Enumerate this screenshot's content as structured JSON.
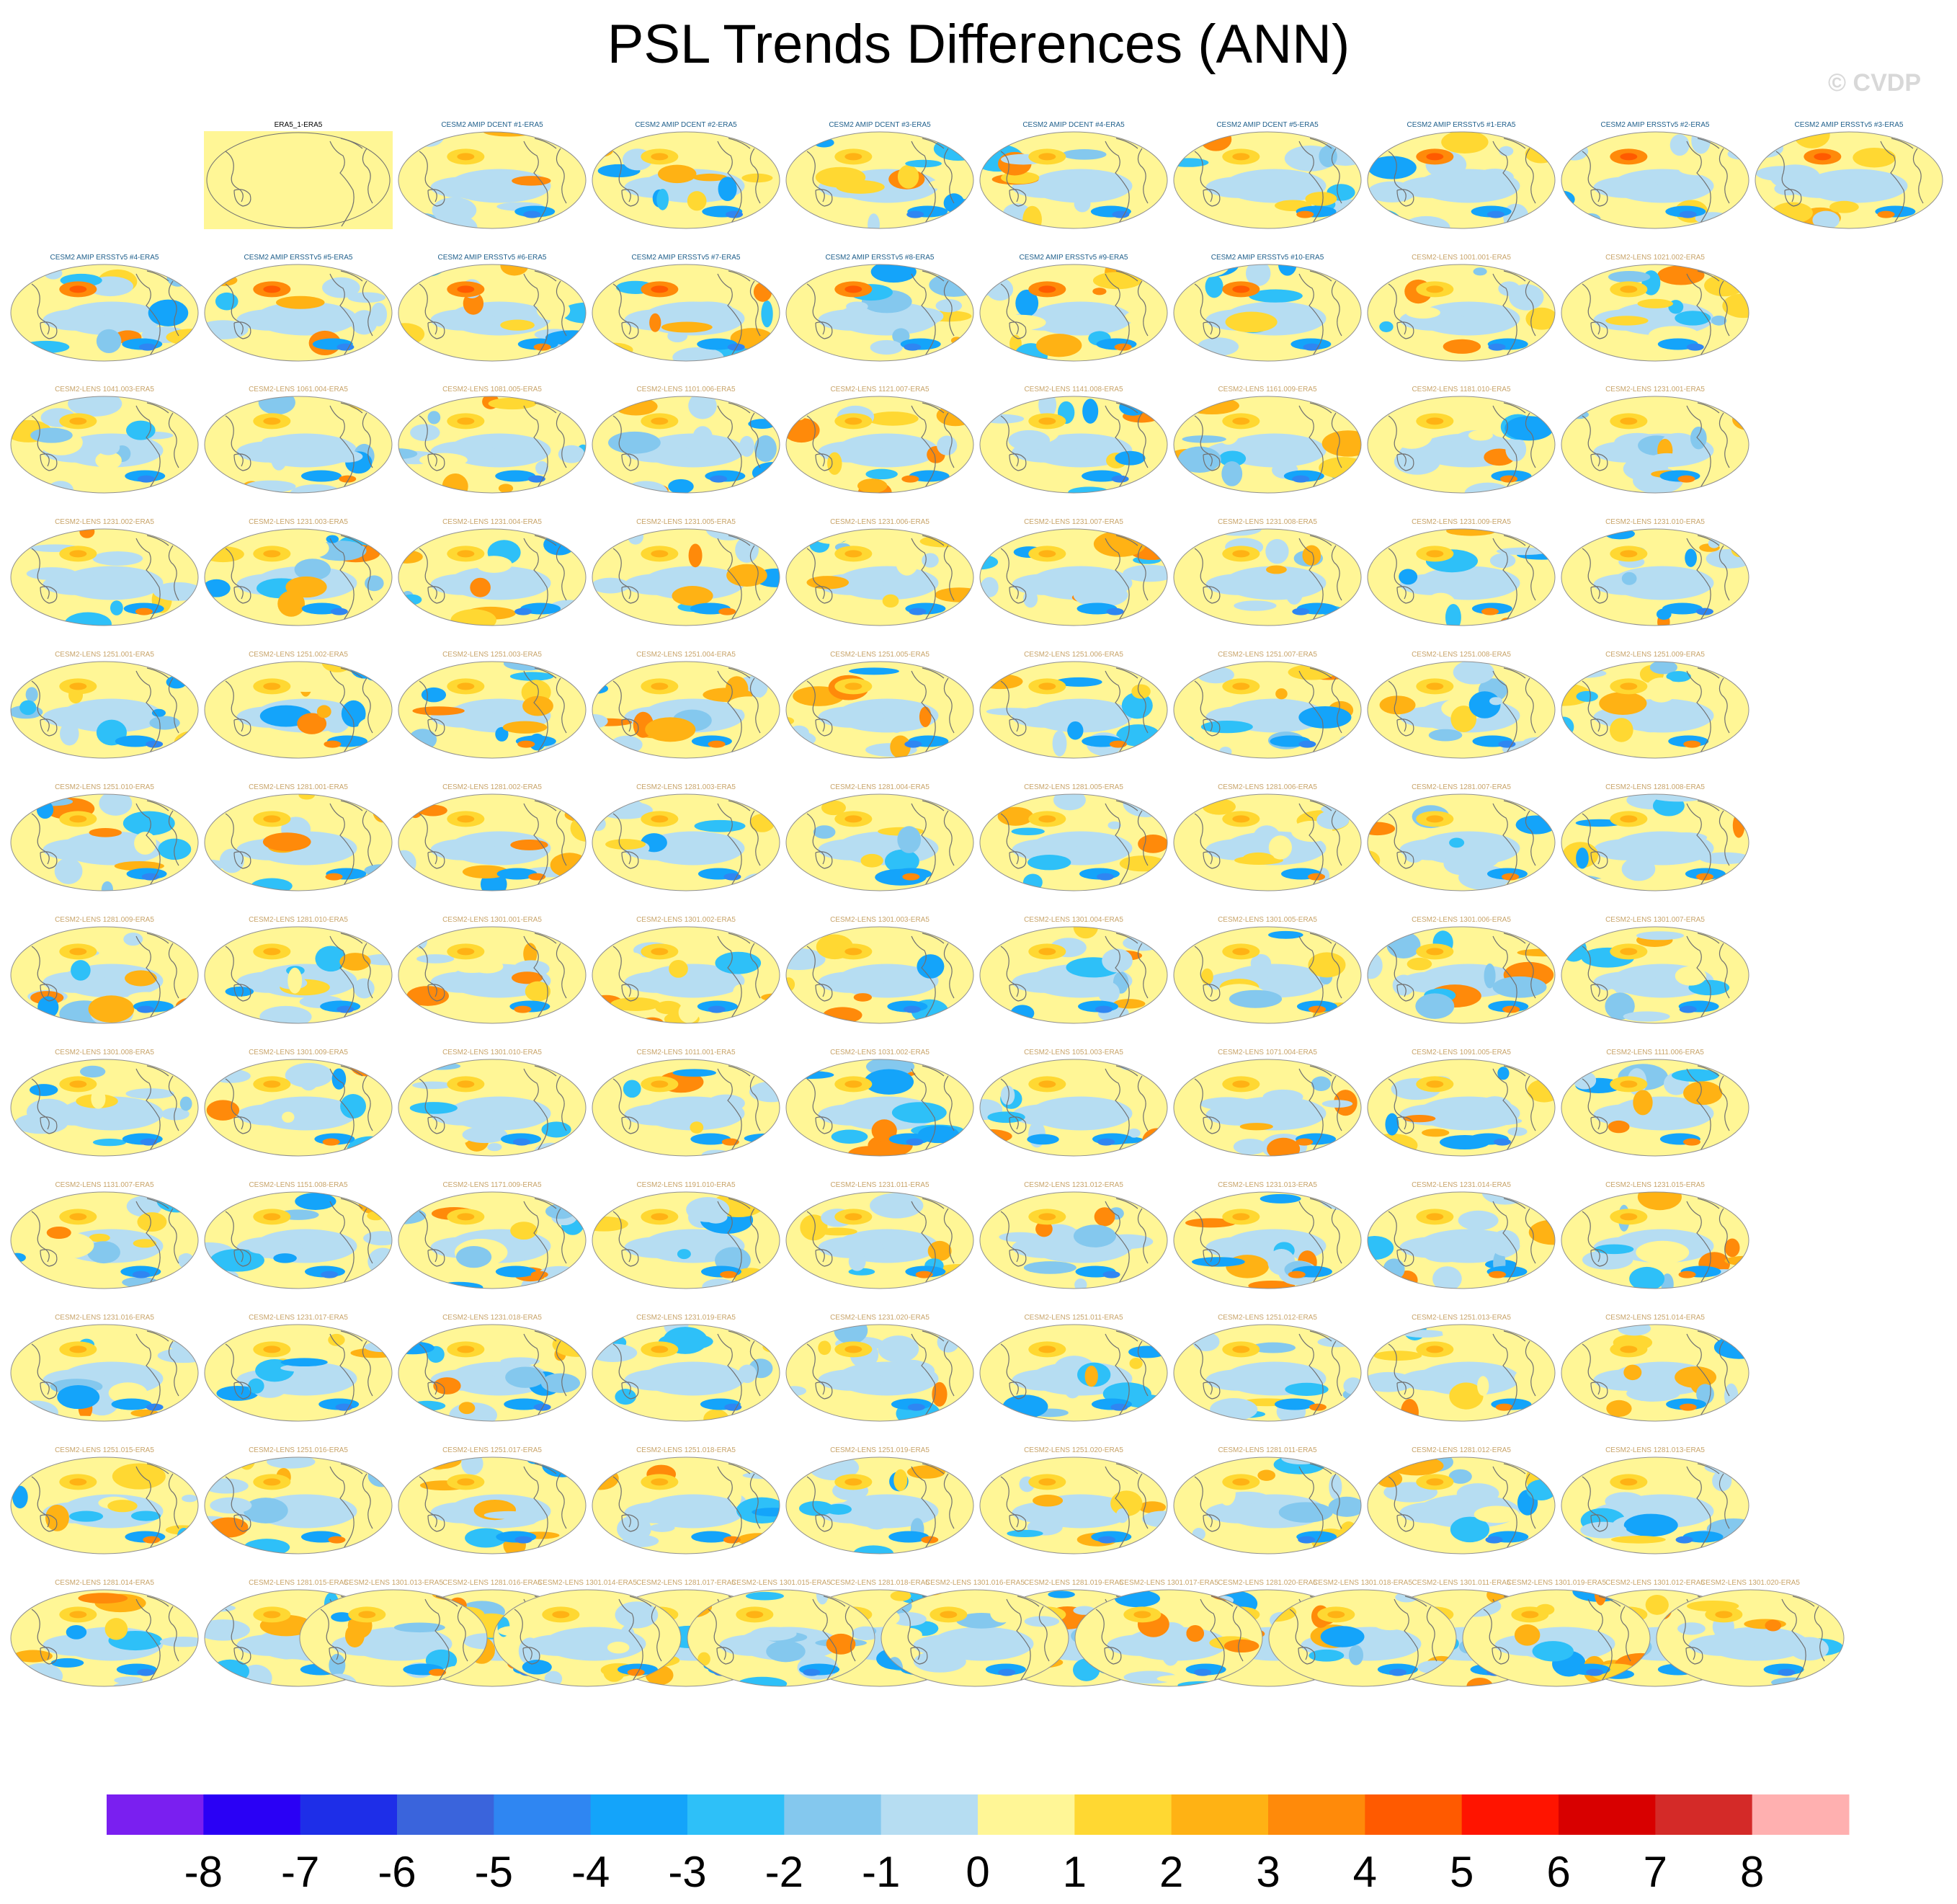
{
  "title": "PSL Trends Differences (ANN)",
  "watermark": "© CVDP",
  "chart_data": {
    "type": "heatmap",
    "title": "PSL Trends Differences (ANN)",
    "panel_titles": [
      "ERA5_1-ERA5",
      "CESM2 AMIP DCENT #1-ERA5",
      "CESM2 AMIP DCENT #2-ERA5",
      "CESM2 AMIP DCENT #3-ERA5",
      "CESM2 AMIP DCENT #4-ERA5",
      "CESM2 AMIP DCENT #5-ERA5",
      "CESM2 AMIP ERSSTv5 #1-ERA5",
      "CESM2 AMIP ERSSTv5 #2-ERA5",
      "CESM2 AMIP ERSSTv5 #3-ERA5",
      "CESM2 AMIP ERSSTv5 #4-ERA5",
      "CESM2 AMIP ERSSTv5 #5-ERA5",
      "CESM2 AMIP ERSSTv5 #6-ERA5",
      "CESM2 AMIP ERSSTv5 #7-ERA5",
      "CESM2 AMIP ERSSTv5 #8-ERA5",
      "CESM2 AMIP ERSSTv5 #9-ERA5",
      "CESM2 AMIP ERSSTv5 #10-ERA5",
      "CESM2-LENS 1001.001-ERA5",
      "CESM2-LENS 1021.002-ERA5",
      "CESM2-LENS 1041.003-ERA5",
      "CESM2-LENS 1061.004-ERA5",
      "CESM2-LENS 1081.005-ERA5",
      "CESM2-LENS 1101.006-ERA5",
      "CESM2-LENS 1121.007-ERA5",
      "CESM2-LENS 1141.008-ERA5",
      "CESM2-LENS 1161.009-ERA5",
      "CESM2-LENS 1181.010-ERA5",
      "CESM2-LENS 1231.001-ERA5",
      "CESM2-LENS 1231.002-ERA5",
      "CESM2-LENS 1231.003-ERA5",
      "CESM2-LENS 1231.004-ERA5",
      "CESM2-LENS 1231.005-ERA5",
      "CESM2-LENS 1231.006-ERA5",
      "CESM2-LENS 1231.007-ERA5",
      "CESM2-LENS 1231.008-ERA5",
      "CESM2-LENS 1231.009-ERA5",
      "CESM2-LENS 1231.010-ERA5",
      "CESM2-LENS 1251.001-ERA5",
      "CESM2-LENS 1251.002-ERA5",
      "CESM2-LENS 1251.003-ERA5",
      "CESM2-LENS 1251.004-ERA5",
      "CESM2-LENS 1251.005-ERA5",
      "CESM2-LENS 1251.006-ERA5",
      "CESM2-LENS 1251.007-ERA5",
      "CESM2-LENS 1251.008-ERA5",
      "CESM2-LENS 1251.009-ERA5",
      "CESM2-LENS 1251.010-ERA5",
      "CESM2-LENS 1281.001-ERA5",
      "CESM2-LENS 1281.002-ERA5",
      "CESM2-LENS 1281.003-ERA5",
      "CESM2-LENS 1281.004-ERA5",
      "CESM2-LENS 1281.005-ERA5",
      "CESM2-LENS 1281.006-ERA5",
      "CESM2-LENS 1281.007-ERA5",
      "CESM2-LENS 1281.008-ERA5",
      "CESM2-LENS 1281.009-ERA5",
      "CESM2-LENS 1281.010-ERA5",
      "CESM2-LENS 1301.001-ERA5",
      "CESM2-LENS 1301.002-ERA5",
      "CESM2-LENS 1301.003-ERA5",
      "CESM2-LENS 1301.004-ERA5",
      "CESM2-LENS 1301.005-ERA5",
      "CESM2-LENS 1301.006-ERA5",
      "CESM2-LENS 1301.007-ERA5",
      "CESM2-LENS 1301.008-ERA5",
      "CESM2-LENS 1301.009-ERA5",
      "CESM2-LENS 1301.010-ERA5",
      "CESM2-LENS 1011.001-ERA5",
      "CESM2-LENS 1031.002-ERA5",
      "CESM2-LENS 1051.003-ERA5",
      "CESM2-LENS 1071.004-ERA5",
      "CESM2-LENS 1091.005-ERA5",
      "CESM2-LENS 1111.006-ERA5",
      "CESM2-LENS 1131.007-ERA5",
      "CESM2-LENS 1151.008-ERA5",
      "CESM2-LENS 1171.009-ERA5",
      "CESM2-LENS 1191.010-ERA5",
      "CESM2-LENS 1231.011-ERA5",
      "CESM2-LENS 1231.012-ERA5",
      "CESM2-LENS 1231.013-ERA5",
      "CESM2-LENS 1231.014-ERA5",
      "CESM2-LENS 1231.015-ERA5",
      "CESM2-LENS 1231.016-ERA5",
      "CESM2-LENS 1231.017-ERA5",
      "CESM2-LENS 1231.018-ERA5",
      "CESM2-LENS 1231.019-ERA5",
      "CESM2-LENS 1231.020-ERA5",
      "CESM2-LENS 1251.011-ERA5",
      "CESM2-LENS 1251.012-ERA5",
      "CESM2-LENS 1251.013-ERA5",
      "CESM2-LENS 1251.014-ERA5",
      "CESM2-LENS 1251.015-ERA5",
      "CESM2-LENS 1251.016-ERA5",
      "CESM2-LENS 1251.017-ERA5",
      "CESM2-LENS 1251.018-ERA5",
      "CESM2-LENS 1251.019-ERA5",
      "CESM2-LENS 1251.020-ERA5",
      "CESM2-LENS 1281.011-ERA5",
      "CESM2-LENS 1281.012-ERA5",
      "CESM2-LENS 1281.013-ERA5",
      "CESM2-LENS 1281.014-ERA5",
      "CESM2-LENS 1281.015-ERA5",
      "CESM2-LENS 1281.016-ERA5",
      "CESM2-LENS 1281.017-ERA5",
      "CESM2-LENS 1281.018-ERA5",
      "CESM2-LENS 1281.019-ERA5",
      "CESM2-LENS 1281.020-ERA5",
      "CESM2-LENS 1301.011-ERA5",
      "CESM2-LENS 1301.012-ERA5",
      "CESM2-LENS 1301.013-ERA5",
      "CESM2-LENS 1301.014-ERA5",
      "CESM2-LENS 1301.015-ERA5",
      "CESM2-LENS 1301.016-ERA5",
      "CESM2-LENS 1301.017-ERA5",
      "CESM2-LENS 1301.018-ERA5",
      "CESM2-LENS 1301.019-ERA5",
      "CESM2-LENS 1301.020-ERA5"
    ],
    "title_colors": {
      "reference": "#000000",
      "amip": "#1f5f8b",
      "lens": "#c8a46a"
    },
    "colorbar": {
      "levels": [
        -8,
        -7,
        -6,
        -5,
        -4,
        -3,
        -2,
        -1,
        0,
        1,
        2,
        3,
        4,
        5,
        6,
        7,
        8
      ],
      "tick_labels": [
        "-8",
        "-7",
        "-6",
        "-5",
        "-4",
        "-3",
        "-2",
        "-1",
        "0",
        "1",
        "2",
        "3",
        "4",
        "5",
        "6",
        "7",
        "8"
      ],
      "colors": [
        "#7a1ff0",
        "#2a00f5",
        "#1e2ee8",
        "#3a64dc",
        "#2f86f2",
        "#14a4fa",
        "#2ec0f8",
        "#84c8ee",
        "#b6ddf2",
        "#fff696",
        "#ffd832",
        "#ffb214",
        "#ff8a0a",
        "#ff5a00",
        "#ff1400",
        "#d80000",
        "#d42a28",
        "#ffb0b0"
      ]
    },
    "map_colors": {
      "ocean_neutral": "#fff696",
      "coastline": "#707070"
    }
  }
}
